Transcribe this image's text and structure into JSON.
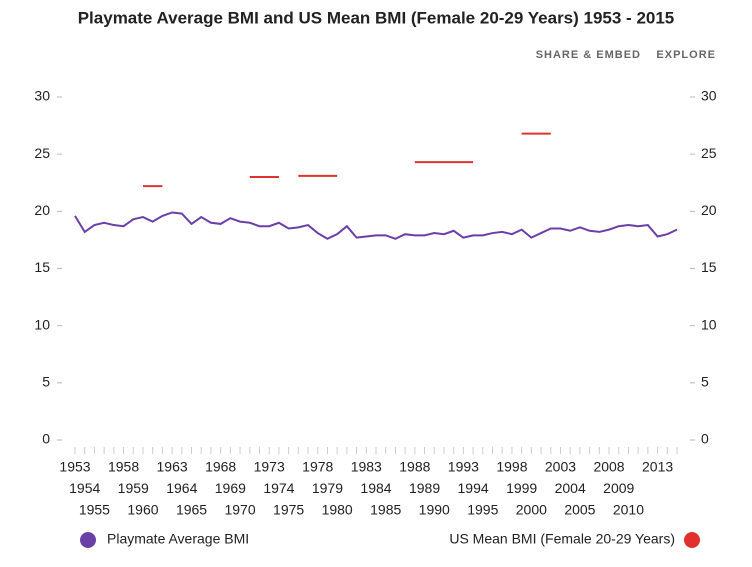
{
  "toolbar": [
    "SHARE & EMBED",
    "EXPLORE"
  ],
  "chart_data": {
    "type": "line",
    "title": "Playmate Average BMI and US Mean BMI (Female 20-29 Years) 1953 - 2015",
    "categories": [
      "1953",
      "1954",
      "1955",
      null,
      null,
      "1958",
      "1959",
      "1960",
      null,
      null,
      "1963",
      "1964",
      "1965",
      null,
      null,
      "1968",
      "1969",
      "1970",
      null,
      null,
      "1973",
      "1974",
      "1975",
      null,
      null,
      "1978",
      "1979",
      "1980",
      null,
      null,
      "1983",
      "1984",
      "1985",
      null,
      null,
      "1988",
      "1989",
      "1990",
      null,
      null,
      "1993",
      "1994",
      "1995",
      null,
      null,
      "1998",
      "1999",
      "2000",
      null,
      null,
      "2003",
      "2004",
      "2005",
      null,
      null,
      "2008",
      "2009",
      "2010",
      null,
      null,
      "2013",
      null,
      null
    ],
    "series": [
      {
        "name": "Playmate Average BMI",
        "color": "#6a3fa8",
        "values": [
          19.6,
          18.2,
          18.8,
          19.0,
          18.8,
          18.7,
          19.3,
          19.5,
          19.1,
          19.6,
          19.9,
          19.8,
          18.9,
          19.5,
          19.0,
          18.9,
          19.4,
          19.1,
          19.0,
          18.7,
          18.7,
          19.0,
          18.5,
          18.6,
          18.8,
          18.1,
          17.6,
          18.0,
          18.7,
          17.7,
          17.8,
          17.9,
          17.9,
          17.6,
          18.0,
          17.9,
          17.9,
          18.1,
          18.0,
          18.3,
          17.7,
          17.9,
          17.9,
          18.1,
          18.2,
          18.0,
          18.4,
          17.7,
          18.1,
          18.5,
          18.5,
          18.3,
          18.6,
          18.3,
          18.2,
          18.4,
          18.7,
          18.8,
          18.7,
          18.8,
          17.8,
          18.0,
          18.4
        ]
      },
      {
        "name": "US Mean BMI (Female 20-29 Years)",
        "color": "#e0312e",
        "values": [
          null,
          null,
          null,
          null,
          null,
          null,
          null,
          22.2,
          22.2,
          22.2,
          null,
          null,
          null,
          null,
          null,
          null,
          null,
          null,
          23.0,
          23.0,
          23.0,
          23.0,
          null,
          23.1,
          23.1,
          23.1,
          23.1,
          23.1,
          null,
          null,
          null,
          null,
          null,
          null,
          null,
          24.3,
          24.3,
          24.3,
          24.3,
          24.3,
          24.3,
          24.3,
          null,
          null,
          null,
          null,
          26.8,
          26.8,
          26.8,
          26.8,
          null,
          null,
          null,
          null,
          null,
          null,
          null,
          null,
          null,
          null,
          null,
          null,
          null
        ]
      }
    ],
    "ylim": [
      0,
      30
    ],
    "yticks": [
      0,
      5,
      10,
      15,
      20,
      25,
      30
    ],
    "grid": false,
    "legend": "bottom"
  }
}
